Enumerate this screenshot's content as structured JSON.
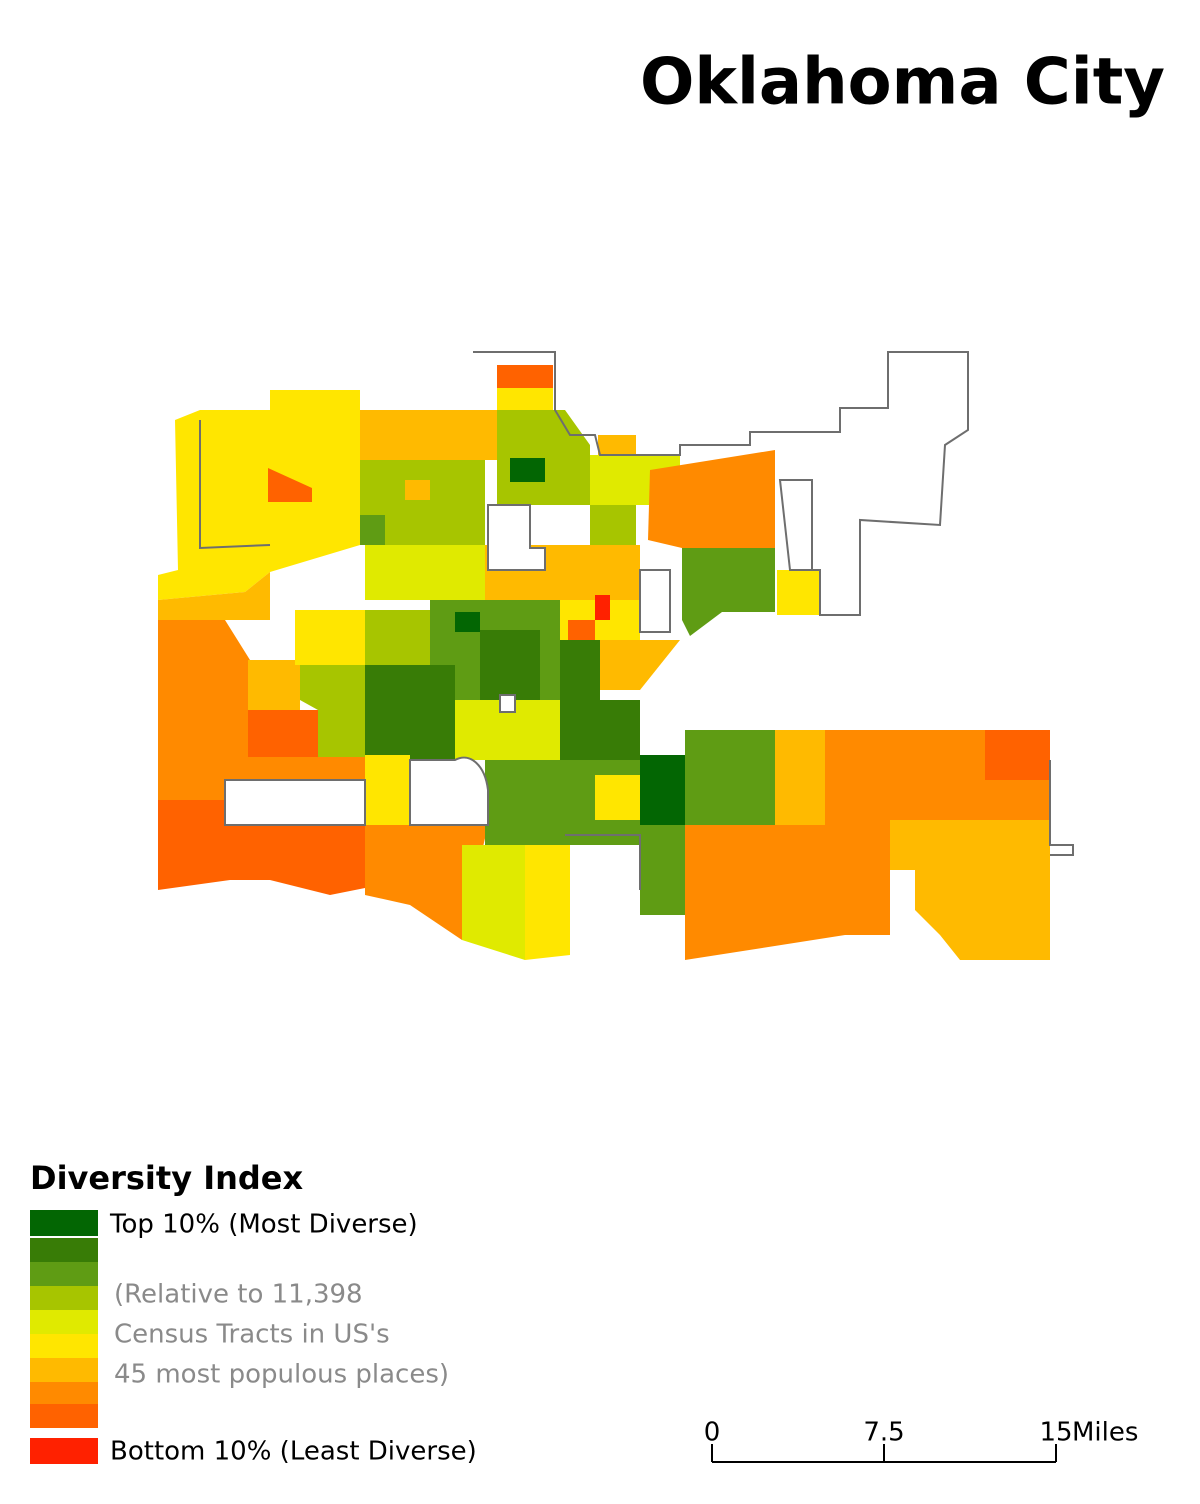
{
  "title": "Oklahoma City",
  "legend": {
    "title": "Diversity Index",
    "colors": [
      "#036603",
      "#387c06",
      "#5f9c14",
      "#a7c500",
      "#e0ea00",
      "#ffe600",
      "#ffba00",
      "#ff8a00",
      "#ff6200",
      "#ff2100"
    ],
    "top_label": "Top 10% (Most Diverse)",
    "bottom_label": "Bottom 10% (Least Diverse)",
    "note": [
      "(Relative to 11,398",
      "Census Tracts in US's",
      "45 most populous places)"
    ]
  },
  "scale_bar": {
    "ticks": [
      0,
      7.5,
      15
    ],
    "unit": "Miles"
  }
}
